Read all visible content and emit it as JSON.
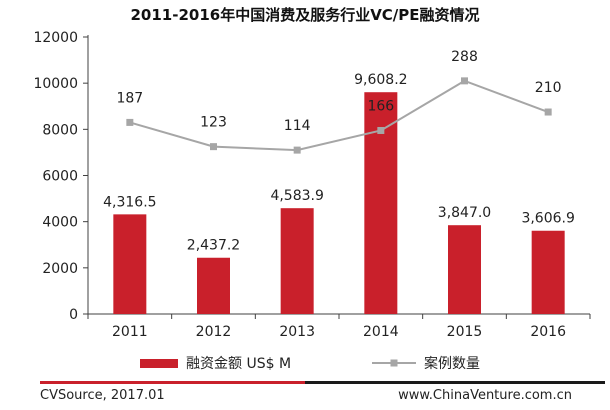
{
  "title": "2011-2016年中国消费及服务行业VC/PE融资情况",
  "colors": {
    "bar": "#C9202B",
    "line": "#A6A6A6",
    "axis": "#404040",
    "footer_red": "#C9202B",
    "footer_dark": "#1A1A1A"
  },
  "chart_data": {
    "type": "bar",
    "title": "2011-2016年中国消费及服务行业VC/PE融资情况",
    "categories": [
      "2011",
      "2012",
      "2013",
      "2014",
      "2015",
      "2016"
    ],
    "series": [
      {
        "name": "融资金额 US$ M",
        "type": "bar",
        "values": [
          4316.5,
          2437.2,
          4583.9,
          9608.2,
          3847.0,
          3606.9
        ],
        "labels": [
          "4,316.5",
          "2,437.2",
          "4,583.9",
          "9,608.2",
          "3,847.0",
          "3,606.9"
        ]
      },
      {
        "name": "案例数量",
        "type": "line",
        "values": [
          187,
          123,
          114,
          166,
          288,
          210
        ],
        "labels": [
          "187",
          "123",
          "114",
          "166",
          "288",
          "210"
        ],
        "plotted_on_left_axis": [
          8300,
          7250,
          7100,
          7950,
          10100,
          8750
        ]
      }
    ],
    "ylim": [
      0,
      12000
    ],
    "yticks": [
      0,
      2000,
      4000,
      6000,
      8000,
      10000,
      12000
    ],
    "ytick_labels": [
      "0",
      "2000",
      "4000",
      "6000",
      "8000",
      "10000",
      "12000"
    ],
    "grid": false,
    "legend": "bottom"
  },
  "legend": {
    "bar_label": "融资金额 US$ M",
    "line_label": "案例数量"
  },
  "footer": {
    "source": "CVSource, 2017.01",
    "site": "www.ChinaVenture.com.cn"
  }
}
